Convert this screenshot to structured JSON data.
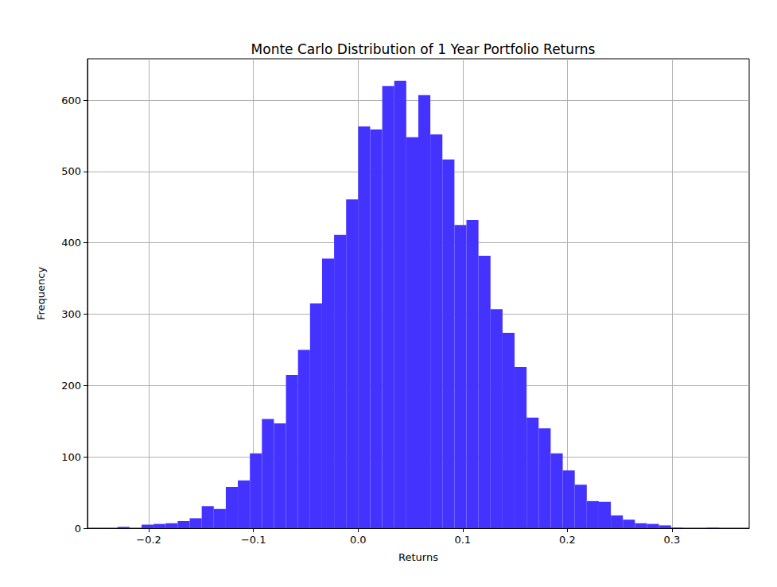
{
  "chart_data": {
    "type": "histogram",
    "title": "Monte Carlo Distribution of 1 Year Portfolio Returns",
    "x_label": "Returns",
    "y_label": "Frequency",
    "bins": [
      -0.2299,
      -0.2184,
      -0.2069,
      -0.1954,
      -0.1839,
      -0.1724,
      -0.1609,
      -0.1494,
      -0.1379,
      -0.1264,
      -0.1149,
      -0.1034,
      -0.0919,
      -0.0804,
      -0.0689,
      -0.0574,
      -0.0459,
      -0.0344,
      -0.0229,
      -0.0114,
      0.0001,
      0.0116,
      0.0231,
      0.0346,
      0.0461,
      0.0576,
      0.0691,
      0.0806,
      0.0921,
      0.1036,
      0.1151,
      0.1266,
      0.1381,
      0.1496,
      0.1611,
      0.1726,
      0.1841,
      0.1956,
      0.2071,
      0.2186,
      0.2301,
      0.2416,
      0.2531,
      0.2646,
      0.2761,
      0.2876,
      0.2991,
      0.3106,
      0.3221,
      0.3336,
      0.3451
    ],
    "values": [
      2,
      0,
      5,
      6,
      7,
      10,
      14,
      31,
      27,
      58,
      67,
      105,
      153,
      147,
      215,
      250,
      315,
      378,
      411,
      461,
      563,
      559,
      620,
      627,
      548,
      607,
      552,
      517,
      425,
      432,
      382,
      307,
      274,
      226,
      155,
      140,
      105,
      81,
      61,
      38,
      37,
      18,
      12,
      7,
      6,
      4,
      1,
      0,
      0,
      1
    ],
    "color": "#4433ff",
    "xlim": [
      -0.2586,
      0.3738
    ],
    "xticks": [
      {
        "value": -0.2,
        "label": "−0.2"
      },
      {
        "value": -0.1,
        "label": "−0.1"
      },
      {
        "value": 0,
        "label": "0.0"
      },
      0.1,
      0.2,
      0.3
    ],
    "ylim": [
      0,
      658
    ],
    "yticks": [
      0,
      100,
      200,
      300,
      400,
      500,
      600
    ],
    "grid": true
  }
}
